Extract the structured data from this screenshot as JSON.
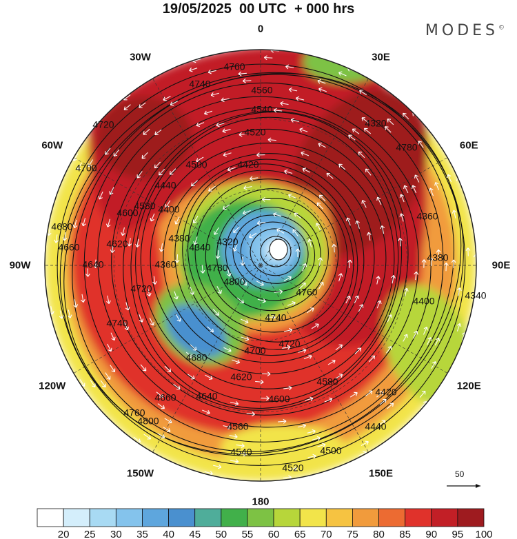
{
  "header": {
    "title": "19/05/2025  00 UTC  + 000 hrs",
    "logo_text": "MODES",
    "logo_mark": "©"
  },
  "map": {
    "projection": "north-polar-stereographic",
    "longitude_labels": [
      {
        "text": "0",
        "lon": 0
      },
      {
        "text": "30E",
        "lon": 30
      },
      {
        "text": "60E",
        "lon": 60
      },
      {
        "text": "90E",
        "lon": 90
      },
      {
        "text": "120E",
        "lon": 120
      },
      {
        "text": "150E",
        "lon": 150
      },
      {
        "text": "180",
        "lon": 180
      },
      {
        "text": "150W",
        "lon": -150
      },
      {
        "text": "120W",
        "lon": -120
      },
      {
        "text": "90W",
        "lon": -90
      },
      {
        "text": "60W",
        "lon": -60
      },
      {
        "text": "30W",
        "lon": -30
      }
    ],
    "contour_labels": [
      "4760",
      "4740",
      "4720",
      "4700",
      "4680",
      "4660",
      "4640",
      "4620",
      "4600",
      "4580",
      "4560",
      "4540",
      "4520",
      "4500",
      "4440",
      "4420",
      "4400",
      "4380",
      "4360",
      "4340",
      "4320",
      "4780",
      "4800"
    ],
    "vector_reference": {
      "value": "50"
    }
  },
  "colorbar": {
    "ticks": [
      "20",
      "25",
      "30",
      "35",
      "40",
      "45",
      "50",
      "55",
      "60",
      "65",
      "70",
      "75",
      "80",
      "85",
      "90",
      "95",
      "100"
    ],
    "colors": [
      "#ffffff",
      "#d4eefb",
      "#a8daf3",
      "#84c3ec",
      "#5ea6dd",
      "#4a90cf",
      "#4fad9a",
      "#41b04a",
      "#7dc244",
      "#b7d63a",
      "#f2e44a",
      "#f6c341",
      "#f19b3c",
      "#ec6b32",
      "#e0322b",
      "#c21f26",
      "#9e1b1f"
    ]
  }
}
